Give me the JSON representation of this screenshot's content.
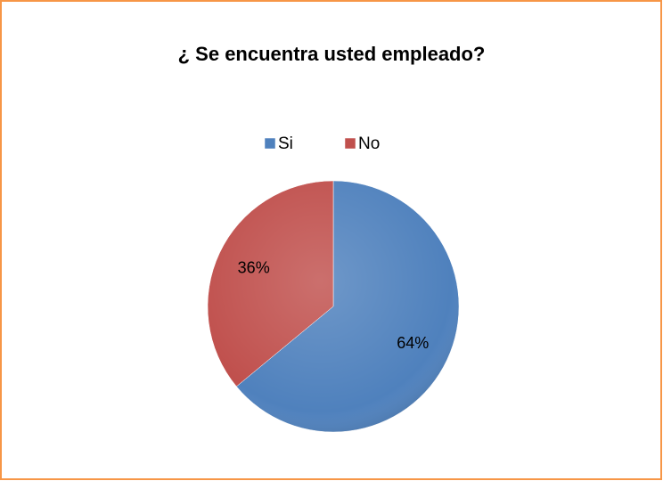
{
  "chart_data": {
    "type": "pie",
    "title": "¿ Se encuentra usted empleado?",
    "categories": [
      "Si",
      "No"
    ],
    "values": [
      64,
      36
    ],
    "value_labels": [
      "64%",
      "36%"
    ],
    "colors": [
      "#4f81bd",
      "#c0504d"
    ],
    "legend": "top"
  }
}
